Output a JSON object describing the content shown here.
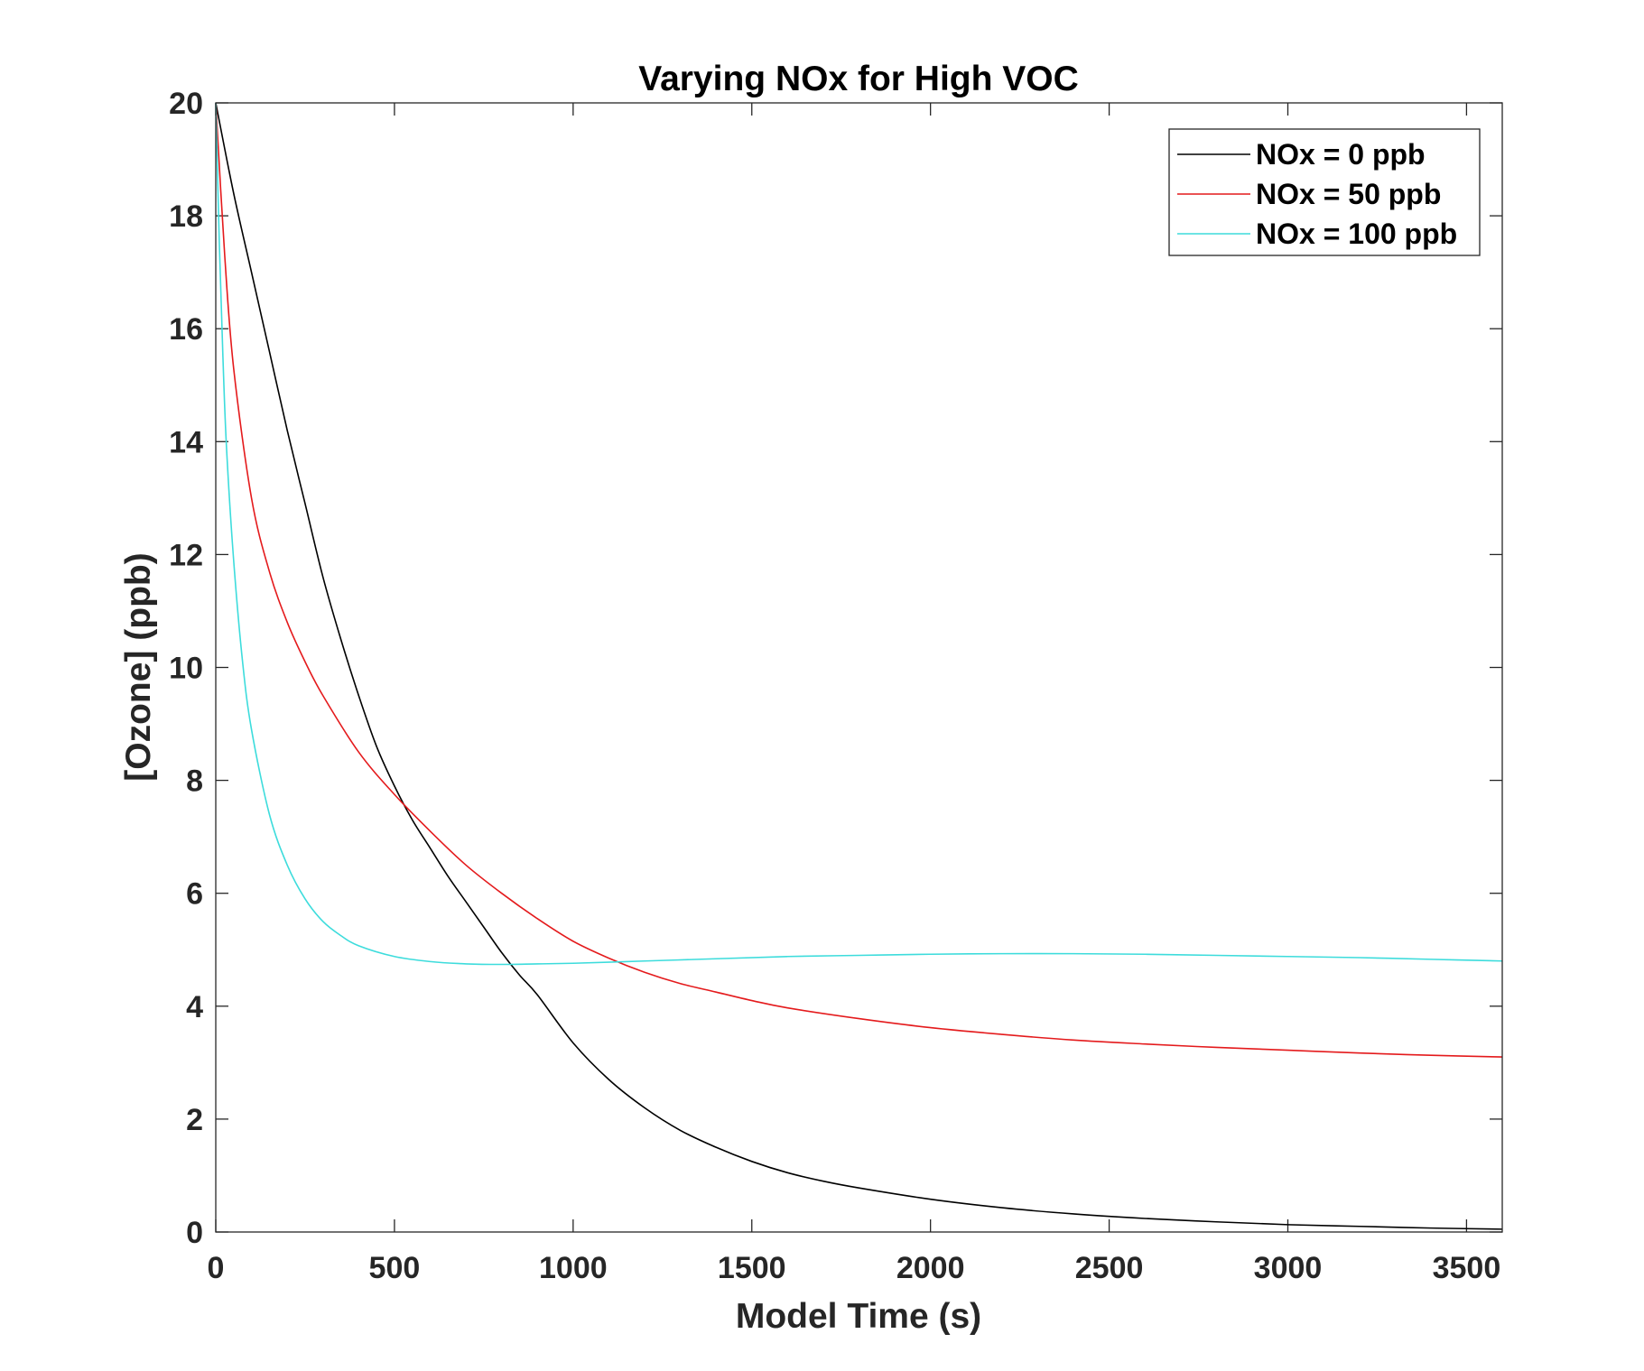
{
  "chart_data": {
    "type": "line",
    "title": "Varying NOx for High VOC",
    "xlabel": "Model Time (s)",
    "ylabel": "[Ozone] (ppb)",
    "xlim": [
      0,
      3600
    ],
    "ylim": [
      0,
      20
    ],
    "xticks": [
      0,
      500,
      1000,
      1500,
      2000,
      2500,
      3000,
      3500
    ],
    "yticks": [
      0,
      2,
      4,
      6,
      8,
      10,
      12,
      14,
      16,
      18,
      20
    ],
    "grid": false,
    "legend_position": "top-right",
    "series": [
      {
        "name": "NOx = 0 ppb",
        "color": "#000000",
        "x": [
          0,
          50,
          100,
          150,
          200,
          250,
          300,
          350,
          400,
          450,
          500,
          550,
          600,
          650,
          700,
          750,
          800,
          850,
          900,
          1000,
          1100,
          1200,
          1300,
          1400,
          1500,
          1600,
          1700,
          1800,
          2000,
          2200,
          2400,
          2600,
          2800,
          3000,
          3200,
          3400,
          3600
        ],
        "y": [
          20,
          18.4,
          17.0,
          15.6,
          14.2,
          12.9,
          11.6,
          10.5,
          9.5,
          8.6,
          7.9,
          7.3,
          6.8,
          6.3,
          5.85,
          5.4,
          4.95,
          4.55,
          4.2,
          3.35,
          2.7,
          2.2,
          1.8,
          1.5,
          1.25,
          1.05,
          0.9,
          0.78,
          0.58,
          0.43,
          0.32,
          0.24,
          0.18,
          0.13,
          0.1,
          0.07,
          0.05
        ]
      },
      {
        "name": "NOx = 50 ppb",
        "color": "#e41a1c",
        "x": [
          0,
          25,
          50,
          100,
          150,
          200,
          250,
          300,
          400,
          500,
          600,
          700,
          800,
          900,
          1000,
          1100,
          1200,
          1300,
          1400,
          1500,
          1600,
          1800,
          2000,
          2200,
          2400,
          2600,
          2800,
          3000,
          3200,
          3400,
          3600
        ],
        "y": [
          20,
          17.3,
          15.3,
          13.0,
          11.7,
          10.8,
          10.1,
          9.5,
          8.5,
          7.75,
          7.1,
          6.5,
          6.0,
          5.55,
          5.15,
          4.85,
          4.6,
          4.4,
          4.25,
          4.1,
          3.97,
          3.78,
          3.62,
          3.5,
          3.4,
          3.33,
          3.27,
          3.22,
          3.17,
          3.13,
          3.1
        ]
      },
      {
        "name": "NOx = 100 ppb",
        "color": "#3ddcdc",
        "x": [
          0,
          10,
          20,
          30,
          50,
          75,
          100,
          150,
          200,
          250,
          300,
          350,
          400,
          500,
          600,
          700,
          800,
          900,
          1000,
          1200,
          1400,
          1600,
          1800,
          2000,
          2200,
          2400,
          2600,
          2800,
          3000,
          3200,
          3400,
          3600
        ],
        "y": [
          20,
          17.5,
          15.5,
          13.9,
          11.9,
          10.1,
          8.9,
          7.4,
          6.5,
          5.9,
          5.5,
          5.25,
          5.07,
          4.88,
          4.79,
          4.75,
          4.74,
          4.75,
          4.76,
          4.8,
          4.84,
          4.88,
          4.9,
          4.92,
          4.93,
          4.93,
          4.92,
          4.9,
          4.88,
          4.86,
          4.83,
          4.8
        ]
      }
    ]
  }
}
